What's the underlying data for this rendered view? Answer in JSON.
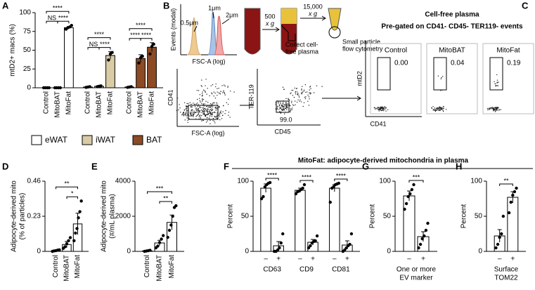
{
  "panel_labels": [
    "A",
    "B",
    "C",
    "D",
    "E",
    "F",
    "G",
    "H"
  ],
  "panel_b": {
    "histogram": {
      "ylabel": "Events (modal)",
      "xlabel": "FSC-A (log)",
      "sizes": [
        "0.5μm",
        "1μm",
        "2μm"
      ]
    },
    "centrifuge1": [
      "500",
      "x g"
    ],
    "collect": [
      "Collect cell-",
      "free plasma"
    ],
    "centrifuge2": [
      "15,000",
      "x g"
    ],
    "flow": [
      "Small particle",
      "flow cytometry"
    ],
    "gating": [
      {
        "ylabel": "CD41",
        "xlabel": "FSC-A (log)",
        "gate": "46.6"
      },
      {
        "ylabel": "TER-119",
        "xlabel": "CD45",
        "gate": "99.0"
      }
    ]
  },
  "panel_c": {
    "title": "Cell-free plasma",
    "subtitle": "Pre-gated on CD41- CD45- TER119- events",
    "ylabel": "mtD2",
    "xlabel": "CD41",
    "plots": [
      {
        "name": "Control",
        "value": "0.00"
      },
      {
        "name": "MitoBAT",
        "value": "0.04"
      },
      {
        "name": "MitoFat",
        "value": "0.19"
      }
    ]
  },
  "mitofat_header": "MitoFat: adipocyte-derived mitochondria in plasma",
  "chart_data": [
    {
      "type": "bar",
      "ylabel": [
        "mtD2+ macs (%)"
      ],
      "ylim": [
        0,
        100
      ],
      "yticks": [
        0,
        25,
        50,
        75,
        100
      ],
      "legend": true,
      "groups": [
        {
          "name": "eWAT",
          "color": "#ffffff",
          "categories": [
            "Control",
            "MitoBAT",
            "MitoFat"
          ],
          "values": [
            0,
            0,
            80
          ],
          "errors": [
            0,
            0,
            1.5
          ],
          "points": [
            [
              0,
              0,
              0,
              0
            ],
            [
              0,
              0,
              0,
              0
            ],
            [
              78,
              80,
              81,
              83
            ]
          ],
          "annotations": [
            {
              "label": "NS",
              "pair": [
                0,
                1
              ]
            },
            {
              "label": "****",
              "pair": [
                1,
                2
              ]
            },
            {
              "label": "****",
              "pair": [
                0,
                2
              ]
            }
          ]
        },
        {
          "name": "iWAT",
          "color": "#d8cba6",
          "categories": [
            "Control",
            "MitoBAT",
            "MitoFat"
          ],
          "values": [
            1,
            2,
            43
          ],
          "errors": [
            0.3,
            0.5,
            5
          ],
          "points": [
            [
              0.5,
              1,
              1.5
            ],
            [
              1.5,
              2,
              2.5
            ],
            [
              37,
              45,
              47
            ]
          ],
          "annotations": [
            {
              "label": "NS",
              "pair": [
                0,
                1
              ]
            },
            {
              "label": "****",
              "pair": [
                1,
                2
              ]
            },
            {
              "label": "****",
              "pair": [
                0,
                2
              ]
            }
          ]
        },
        {
          "name": "BAT",
          "color": "#8c4b24",
          "categories": [
            "Control",
            "MitoBAT",
            "MitoFat"
          ],
          "values": [
            1,
            39,
            54
          ],
          "errors": [
            0.3,
            5,
            6
          ],
          "points": [
            [
              0.5,
              1,
              1.5
            ],
            [
              33,
              40,
              42
            ],
            [
              45,
              55,
              58
            ]
          ],
          "annotations": [
            {
              "label": "****",
              "pair": [
                0,
                1
              ]
            },
            {
              "label": "****",
              "pair": [
                1,
                2
              ]
            },
            {
              "label": "****",
              "pair": [
                0,
                2
              ]
            }
          ]
        }
      ]
    },
    {
      "type": "bar",
      "ylabel": [
        "Adipocyte-derived mito",
        "(% of particles)"
      ],
      "ylim": [
        0,
        0.46
      ],
      "yticks": [
        0,
        0.23,
        0.46
      ],
      "color": "#ffffff",
      "groups": [
        {
          "categories": [
            "Control",
            "MitoBAT",
            "MitoFat"
          ],
          "values": [
            0.005,
            0.045,
            0.18
          ],
          "errors": [
            0.003,
            0.02,
            0.07
          ],
          "points": [
            [
              0,
              0.003,
              0.005,
              0.008,
              0.01
            ],
            [
              0.02,
              0.03,
              0.05,
              0.07,
              0.09
            ],
            [
              0.07,
              0.12,
              0.15,
              0.22,
              0.26,
              0.33
            ]
          ],
          "annotations": [
            {
              "label": "*",
              "pair": [
                1,
                2
              ]
            },
            {
              "label": "**",
              "pair": [
                0,
                2
              ]
            }
          ]
        }
      ]
    },
    {
      "type": "bar",
      "ylabel": [
        "Adipocyte-derived mito",
        "(#/mL plasma)"
      ],
      "ylim": [
        0,
        4000
      ],
      "yticks": [
        0,
        2000,
        4000
      ],
      "color": "#ffffff",
      "groups": [
        {
          "categories": [
            "Control",
            "MitoBAT",
            "MitoFat"
          ],
          "values": [
            30,
            480,
            1650
          ],
          "errors": [
            20,
            150,
            420
          ],
          "points": [
            [
              0,
              20,
              40,
              60
            ],
            [
              200,
              300,
              500,
              700,
              900
            ],
            [
              800,
              1200,
              1500,
              2000,
              2500,
              2600
            ]
          ],
          "annotations": [
            {
              "label": "**",
              "pair": [
                1,
                2
              ]
            },
            {
              "label": "***",
              "pair": [
                0,
                2
              ]
            }
          ]
        }
      ]
    },
    {
      "type": "bar",
      "ylabel": [
        "Percent"
      ],
      "ylim": [
        0,
        100
      ],
      "yticks": [
        0,
        50,
        100
      ],
      "color": "#ffffff",
      "groups": [
        {
          "name": [
            "CD63"
          ],
          "categories": [
            "–",
            "+"
          ],
          "values": [
            90,
            8
          ],
          "errors": [
            6,
            6
          ],
          "points": [
            [
              75,
              78,
              92,
              95,
              97,
              98
            ],
            [
              0,
              0,
              2,
              5,
              12,
              25
            ]
          ],
          "annotations": [
            {
              "label": "****",
              "pair": [
                0,
                1
              ]
            }
          ]
        },
        {
          "name": [
            "CD9"
          ],
          "categories": [
            "–",
            "+"
          ],
          "values": [
            87,
            13
          ],
          "errors": [
            3,
            4
          ],
          "points": [
            [
              82,
              85,
              86,
              88,
              90,
              95
            ],
            [
              5,
              8,
              12,
              14,
              15,
              22
            ]
          ],
          "annotations": [
            {
              "label": "****",
              "pair": [
                0,
                1
              ]
            }
          ]
        },
        {
          "name": [
            "CD81"
          ],
          "categories": [
            "–",
            "+"
          ],
          "values": [
            90,
            9
          ],
          "errors": [
            5,
            6
          ],
          "points": [
            [
              70,
              90,
              92,
              95,
              96,
              97
            ],
            [
              0,
              2,
              5,
              8,
              10,
              25
            ]
          ],
          "annotations": [
            {
              "label": "****",
              "pair": [
                0,
                1
              ]
            }
          ]
        }
      ]
    },
    {
      "type": "bar",
      "ylabel": [
        "Percent"
      ],
      "ylim": [
        0,
        100
      ],
      "yticks": [
        0,
        50,
        100
      ],
      "color": "#ffffff",
      "groups": [
        {
          "name": [
            "One or more",
            "EV marker"
          ],
          "categories": [
            "–",
            "+"
          ],
          "values": [
            79,
            21
          ],
          "errors": [
            7,
            7
          ],
          "points": [
            [
              60,
              68,
              78,
              82,
              88,
              95
            ],
            [
              5,
              10,
              18,
              22,
              30,
              40
            ]
          ],
          "annotations": [
            {
              "label": "***",
              "pair": [
                0,
                1
              ]
            }
          ]
        }
      ]
    },
    {
      "type": "bar",
      "ylabel": [
        "Percent"
      ],
      "ylim": [
        0,
        100
      ],
      "yticks": [
        0,
        50,
        100
      ],
      "color": "#ffffff",
      "groups": [
        {
          "name": [
            "Surface",
            "TOM22"
          ],
          "categories": [
            "–",
            "+"
          ],
          "values": [
            22,
            77
          ],
          "errors": [
            9,
            8
          ],
          "points": [
            [
              5,
              10,
              20,
              25,
              50
            ],
            [
              55,
              70,
              80,
              85,
              90
            ]
          ],
          "annotations": [
            {
              "label": "**",
              "pair": [
                0,
                1
              ]
            }
          ]
        }
      ]
    }
  ]
}
